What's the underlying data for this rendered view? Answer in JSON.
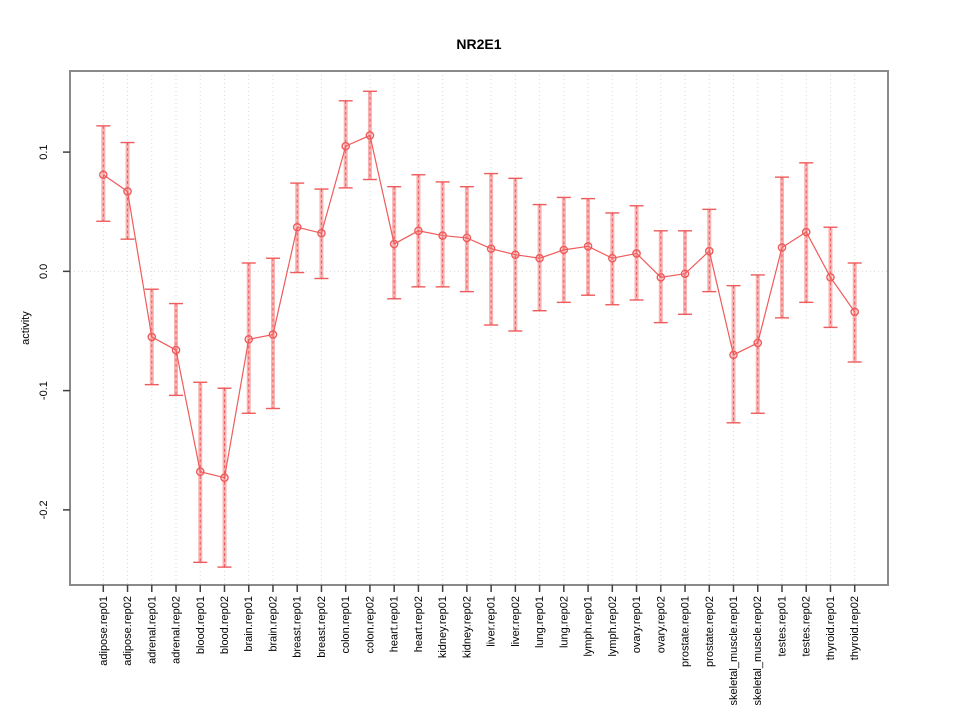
{
  "figure": {
    "title": "NR2E1",
    "y_axis_label": "activity"
  },
  "chart_data": {
    "type": "line",
    "title": "NR2E1",
    "xlabel": "",
    "ylabel": "activity",
    "legend": "none",
    "grid": "vertical dotted gridline at each category; horizontal dotted line at y=0",
    "x_label_rotation": 90,
    "ylim": [
      -0.263,
      0.168
    ],
    "y_ticks": [
      0.1,
      0.0,
      -0.1,
      -0.2
    ],
    "y_tick_labels": [
      "0.1",
      "0.0",
      "-0.1",
      "-0.2"
    ],
    "categories": [
      "adipose.rep01",
      "adipose.rep02",
      "adrenal.rep01",
      "adrenal.rep02",
      "blood.rep01",
      "blood.rep02",
      "brain.rep01",
      "brain.rep02",
      "breast.rep01",
      "breast.rep02",
      "colon.rep01",
      "colon.rep02",
      "heart.rep01",
      "heart.rep02",
      "kidney.rep01",
      "kidney.rep02",
      "liver.rep01",
      "liver.rep02",
      "lung.rep01",
      "lung.rep02",
      "lymph.rep01",
      "lymph.rep02",
      "ovary.rep01",
      "ovary.rep02",
      "prostate.rep01",
      "prostate.rep02",
      "skeletal_muscle.rep01",
      "skeletal_muscle.rep02",
      "testes.rep01",
      "testes.rep02",
      "thyroid.rep01",
      "thyroid.rep02"
    ],
    "series": [
      {
        "name": "activity",
        "values": [
          0.081,
          0.067,
          -0.055,
          -0.066,
          -0.168,
          -0.173,
          -0.057,
          -0.053,
          0.037,
          0.032,
          0.105,
          0.114,
          0.023,
          0.034,
          0.03,
          0.028,
          0.019,
          0.014,
          0.011,
          0.018,
          0.021,
          0.011,
          0.015,
          -0.005,
          -0.002,
          0.017,
          -0.07,
          -0.06,
          0.02,
          0.033,
          -0.005,
          -0.034
        ],
        "error_low": [
          0.042,
          0.027,
          -0.095,
          -0.104,
          -0.244,
          -0.248,
          -0.119,
          -0.115,
          -0.001,
          -0.006,
          0.07,
          0.077,
          -0.023,
          -0.013,
          -0.013,
          -0.017,
          -0.045,
          -0.05,
          -0.033,
          -0.026,
          -0.02,
          -0.028,
          -0.024,
          -0.043,
          -0.036,
          -0.017,
          -0.127,
          -0.119,
          -0.039,
          -0.026,
          -0.047,
          -0.076
        ],
        "error_high": [
          0.122,
          0.108,
          -0.015,
          -0.027,
          -0.093,
          -0.098,
          0.007,
          0.011,
          0.074,
          0.069,
          0.143,
          0.151,
          0.071,
          0.081,
          0.075,
          0.071,
          0.082,
          0.078,
          0.056,
          0.062,
          0.061,
          0.049,
          0.055,
          0.034,
          0.034,
          0.052,
          -0.012,
          -0.003,
          0.079,
          0.091,
          0.037,
          0.007
        ]
      }
    ],
    "colors": {
      "point_line": "#ef5b5b",
      "error_band": "#f8b2b2",
      "grid": "#d9d9d9",
      "frame": "#8a8a8a",
      "tick": "#404040",
      "text": "#000000"
    }
  }
}
